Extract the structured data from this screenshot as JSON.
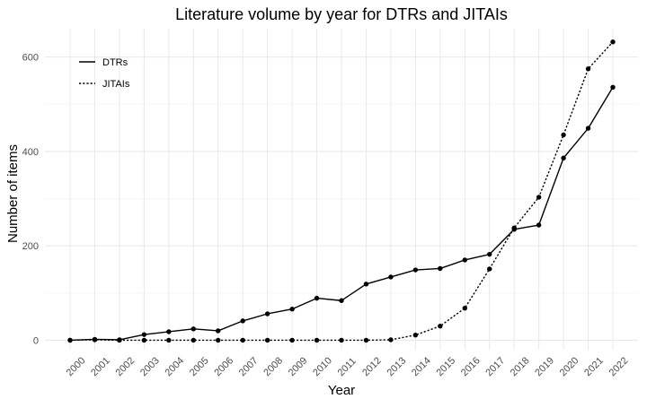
{
  "chart_data": {
    "type": "line",
    "title": "Literature volume by year for DTRs and JITAIs",
    "xlabel": "Year",
    "ylabel": "Number of items",
    "x": [
      "2000",
      "2001",
      "2002",
      "2003",
      "2004",
      "2005",
      "2006",
      "2007",
      "2008",
      "2009",
      "2010",
      "2011",
      "2012",
      "2013",
      "2014",
      "2015",
      "2016",
      "2017",
      "2018",
      "2019",
      "2020",
      "2021",
      "2022"
    ],
    "ylim": [
      -20,
      660
    ],
    "yticks": [
      0,
      200,
      400,
      600
    ],
    "ytick_labels": [
      "0",
      "200",
      "400",
      "600"
    ],
    "grid": true,
    "legend_position": "top-left",
    "series": [
      {
        "name": "DTRs",
        "line_style": "solid",
        "color": "#000000",
        "values": [
          0,
          2,
          1,
          12,
          18,
          24,
          20,
          41,
          56,
          66,
          89,
          84,
          119,
          134,
          149,
          152,
          170,
          182,
          235,
          244,
          386,
          449,
          536
        ]
      },
      {
        "name": "JITAIs",
        "line_style": "dotted",
        "color": "#000000",
        "values": [
          0,
          1,
          0,
          0,
          0,
          0,
          0,
          0,
          0,
          0,
          0,
          0,
          0,
          1,
          11,
          30,
          68,
          151,
          238,
          303,
          435,
          575,
          632
        ]
      }
    ]
  }
}
